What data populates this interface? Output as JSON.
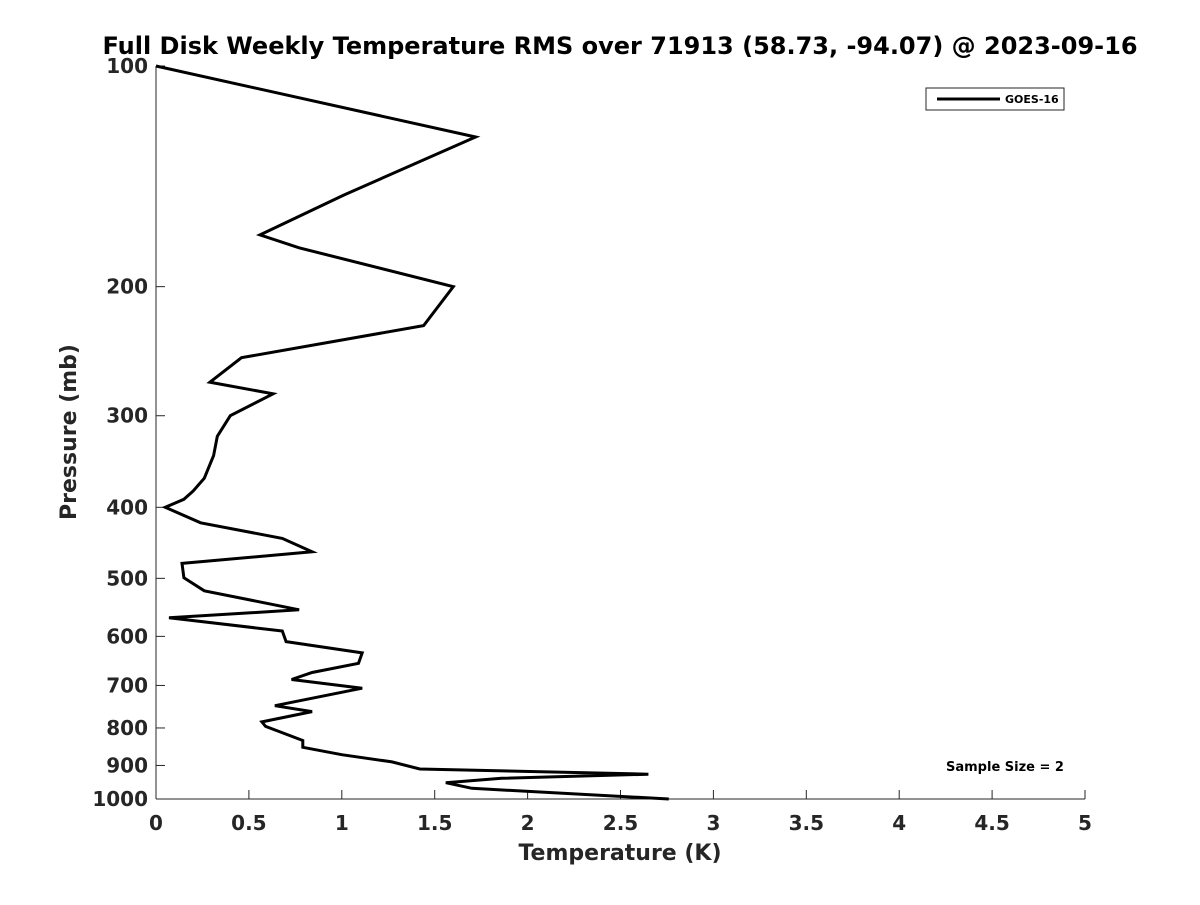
{
  "chart_data": {
    "type": "line",
    "title": "Full Disk Weekly Temperature RMS over 71913 (58.73, -94.07) @ 2023-09-16",
    "xlabel": "Temperature (K)",
    "ylabel": "Pressure (mb)",
    "xlim": [
      0,
      5
    ],
    "ylim": [
      100,
      1000
    ],
    "y_scale": "log",
    "y_reversed": true,
    "xticks": [
      0,
      0.5,
      1,
      1.5,
      2,
      2.5,
      3,
      3.5,
      4,
      4.5,
      5
    ],
    "xtick_labels": [
      "0",
      "0.5",
      "1",
      "1.5",
      "2",
      "2.5",
      "3",
      "3.5",
      "4",
      "4.5",
      "5"
    ],
    "yticks": [
      100,
      200,
      300,
      400,
      500,
      600,
      700,
      800,
      900,
      1000
    ],
    "ytick_labels": [
      "100",
      "200",
      "300",
      "400",
      "500",
      "600",
      "700",
      "800",
      "900",
      "1000"
    ],
    "grid": false,
    "legend_position": "top-right",
    "line_color": "#000000",
    "series": [
      {
        "name": "GOES-16",
        "points": [
          [
            0.0,
            100
          ],
          [
            1.72,
            125
          ],
          [
            1.01,
            150
          ],
          [
            0.56,
            170
          ],
          [
            0.77,
            177
          ],
          [
            1.6,
            200
          ],
          [
            1.44,
            226
          ],
          [
            0.46,
            250
          ],
          [
            0.29,
            270
          ],
          [
            0.63,
            280
          ],
          [
            0.4,
            300
          ],
          [
            0.33,
            320
          ],
          [
            0.31,
            340
          ],
          [
            0.26,
            365
          ],
          [
            0.2,
            380
          ],
          [
            0.15,
            390
          ],
          [
            0.05,
            400
          ],
          [
            0.24,
            420
          ],
          [
            0.68,
            441
          ],
          [
            0.84,
            460
          ],
          [
            0.14,
            477
          ],
          [
            0.15,
            499
          ],
          [
            0.26,
            520
          ],
          [
            0.77,
            552
          ],
          [
            0.07,
            566
          ],
          [
            0.68,
            590
          ],
          [
            0.7,
            610
          ],
          [
            1.11,
            632
          ],
          [
            1.09,
            653
          ],
          [
            0.84,
            672
          ],
          [
            0.73,
            687
          ],
          [
            1.11,
            706
          ],
          [
            0.64,
            746
          ],
          [
            0.84,
            760
          ],
          [
            0.57,
            785
          ],
          [
            0.59,
            796
          ],
          [
            0.79,
            832
          ],
          [
            0.79,
            850
          ],
          [
            1.0,
            870
          ],
          [
            1.27,
            890
          ],
          [
            1.42,
            910
          ],
          [
            2.65,
            925
          ],
          [
            1.86,
            937
          ],
          [
            1.56,
            950
          ],
          [
            1.7,
            967
          ],
          [
            2.76,
            1000
          ]
        ]
      }
    ],
    "legend_entries": [
      "GOES-16"
    ],
    "annotation": "Sample Size = 2"
  }
}
